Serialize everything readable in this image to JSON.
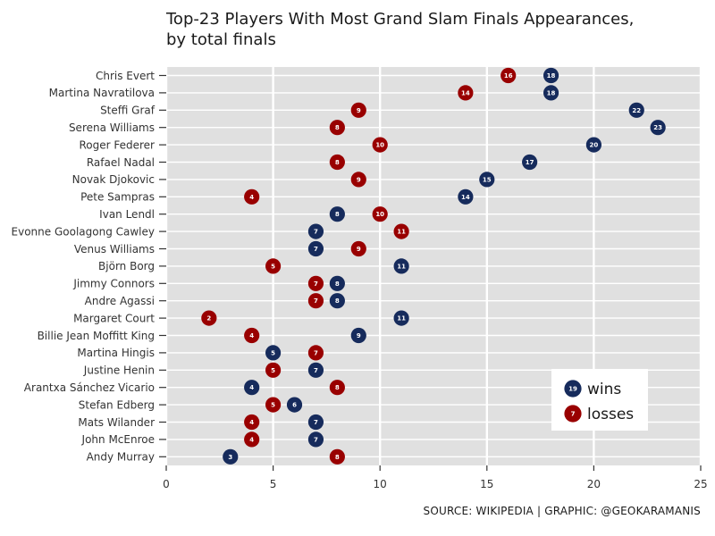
{
  "title_line1": "Top-23 Players With Most Grand Slam Finals Appearances,",
  "title_line2": "by total finals",
  "caption": "SOURCE: WIKIPEDIA | GRAPHIC: @GEOKARAMANIS",
  "colors": {
    "wins": "#162b5c",
    "losses": "#990000",
    "panel": "#e0e0e0",
    "grid": "#ffffff"
  },
  "chart_data": {
    "type": "scatter",
    "xlim": [
      0,
      25
    ],
    "xticks": [
      0,
      5,
      10,
      15,
      20,
      25
    ],
    "players": [
      "Chris Evert",
      "Martina Navratilova",
      "Steffi Graf",
      "Serena Williams",
      "Roger Federer",
      "Rafael Nadal",
      "Novak Djokovic",
      "Pete Sampras",
      "Ivan Lendl",
      "Evonne Goolagong Cawley",
      "Venus Williams",
      "Björn Borg",
      "Jimmy Connors",
      "Andre Agassi",
      "Margaret Court",
      "Billie Jean Moffitt King",
      "Martina Hingis",
      "Justine Henin",
      "Arantxa Sánchez Vicario",
      "Stefan Edberg",
      "Mats Wilander",
      "John McEnroe",
      "Andy Murray"
    ],
    "series": [
      {
        "name": "wins",
        "values": [
          18,
          18,
          22,
          23,
          20,
          17,
          15,
          14,
          8,
          7,
          7,
          11,
          8,
          8,
          11,
          9,
          5,
          7,
          4,
          6,
          7,
          7,
          3
        ]
      },
      {
        "name": "losses",
        "values": [
          16,
          14,
          9,
          8,
          10,
          8,
          9,
          4,
          10,
          11,
          9,
          5,
          7,
          7,
          2,
          4,
          7,
          5,
          8,
          5,
          4,
          4,
          8
        ]
      }
    ],
    "legend": {
      "position": "bottom-right",
      "items": [
        {
          "key": "wins",
          "sample": "19"
        },
        {
          "key": "losses",
          "sample": "7"
        }
      ]
    },
    "grid": true
  }
}
